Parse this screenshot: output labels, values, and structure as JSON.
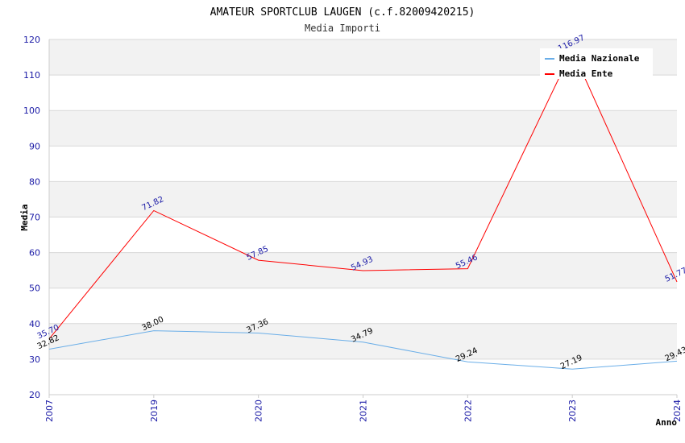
{
  "chart_data": {
    "type": "line",
    "title": "AMATEUR SPORTCLUB LAUGEN (c.f.82009420215)",
    "subtitle": "Media Importi",
    "xlabel": "Anno",
    "ylabel": "Media",
    "ylim": [
      20,
      120
    ],
    "yticks": [
      20,
      30,
      40,
      50,
      60,
      70,
      80,
      90,
      100,
      110,
      120
    ],
    "categories": [
      "2007",
      "2019",
      "2020",
      "2021",
      "2022",
      "2023",
      "2024"
    ],
    "grid": true,
    "legend_position": "top-right",
    "series": [
      {
        "name": "Media Nazionale",
        "color": "#6aaee8",
        "values": [
          32.82,
          38.0,
          37.36,
          34.79,
          29.24,
          27.19,
          29.43
        ],
        "labels": [
          "32.82",
          "38.00",
          "37.36",
          "34.79",
          "29.24",
          "27.19",
          "29.43"
        ]
      },
      {
        "name": "Media Ente",
        "color": "#ff0000",
        "values": [
          35.7,
          71.82,
          57.85,
          54.93,
          55.46,
          116.97,
          51.77
        ],
        "labels": [
          "35.70",
          "71.82",
          "57.85",
          "54.93",
          "55.46",
          "116.97",
          "51.77"
        ]
      }
    ]
  }
}
